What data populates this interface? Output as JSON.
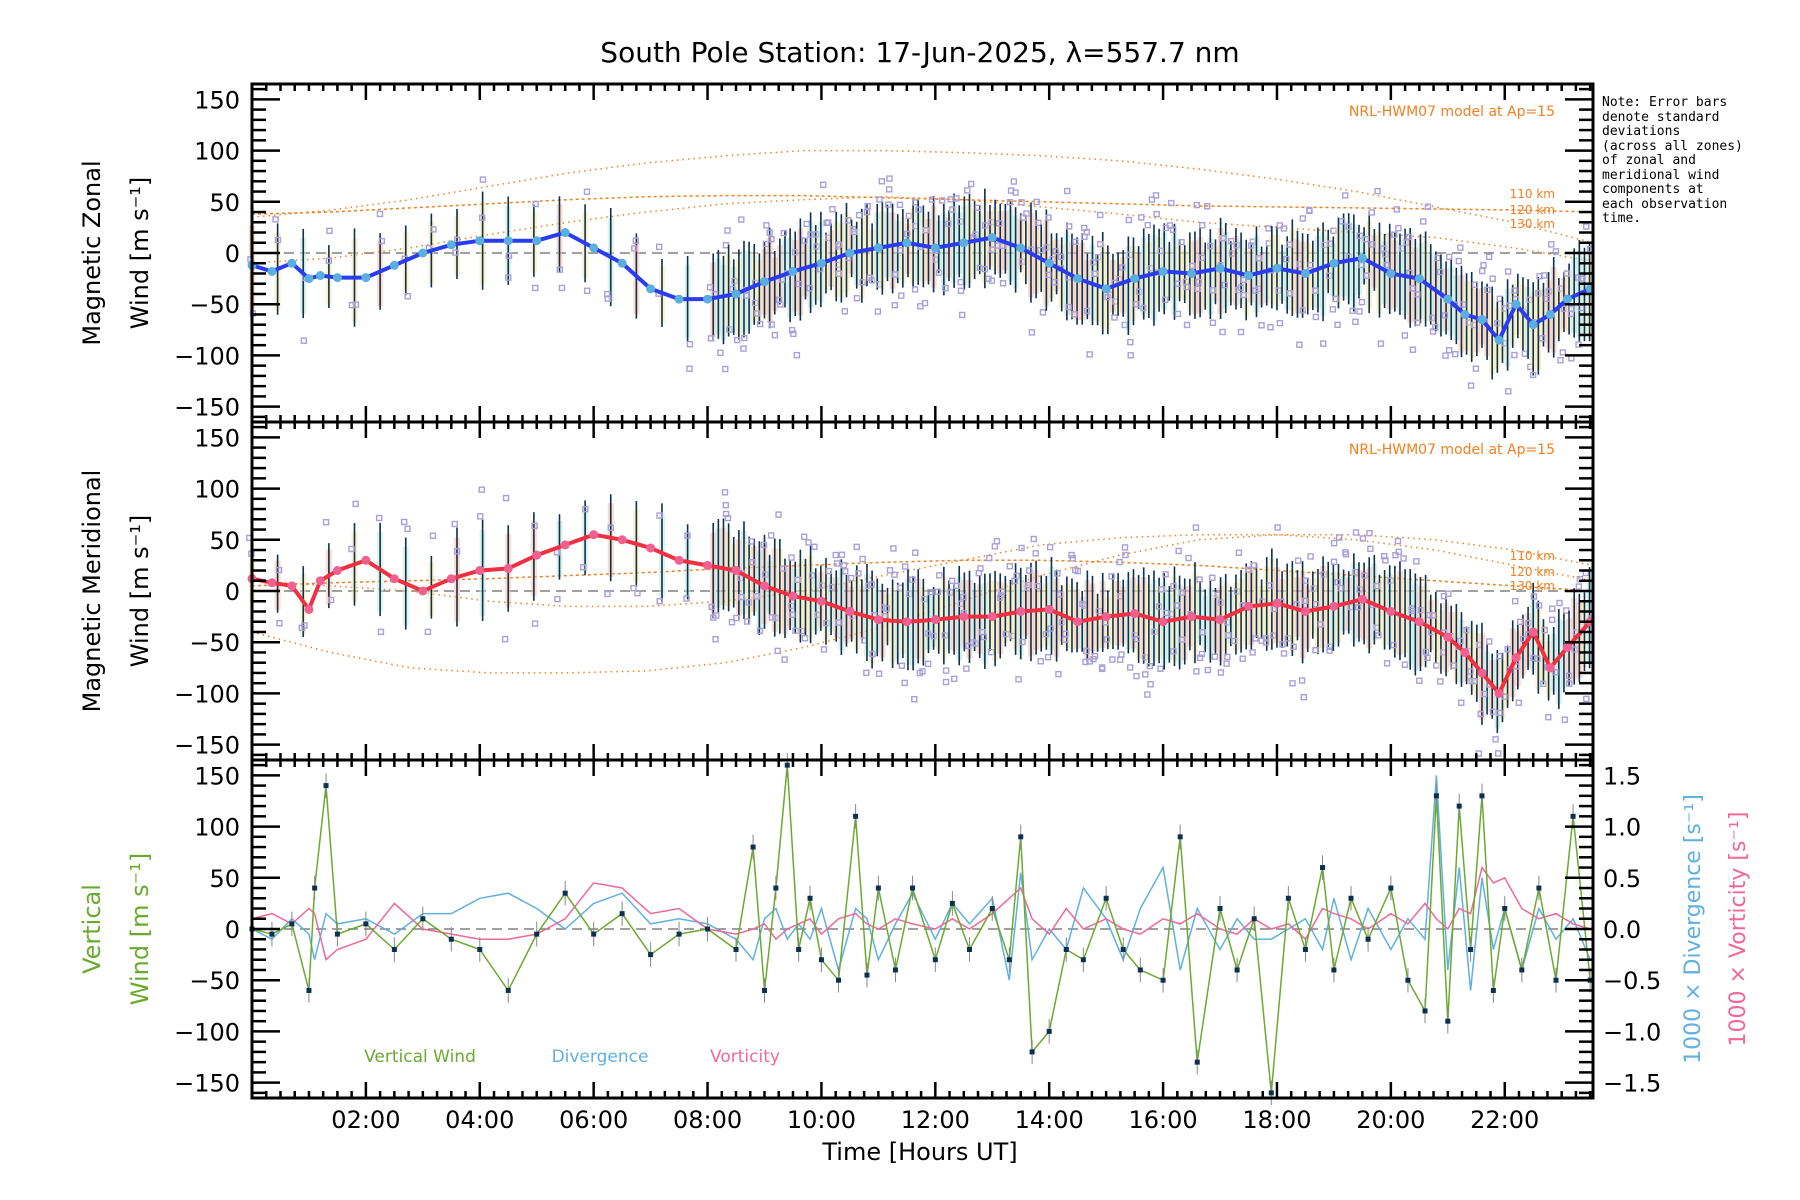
{
  "chart_data": [
    {
      "type": "line",
      "panel": "zonal",
      "title": "South Pole Station: 17-Jun-2025, λ=557.7 nm",
      "ylabel_line1": "Magnetic Zonal",
      "ylabel_line2": "Wind [m s⁻¹]",
      "ylim": [
        -165,
        165
      ],
      "yticks": [
        150,
        100,
        50,
        0,
        -50,
        -100,
        -150
      ],
      "model_label": "NRL-HWM07 model at Ap=15",
      "model_altitudes": [
        "110 km",
        "120 km",
        "130 km"
      ],
      "colors": {
        "mean_line": "#2a3cf0",
        "mean_marker": "#5aaee0",
        "model": "#f08020",
        "outlier": "#a8a0d8",
        "error_bar": "#0c3050"
      },
      "x_hours": [
        0.0,
        0.35,
        0.7,
        1.0,
        1.2,
        1.5,
        2.0,
        2.5,
        3.0,
        3.5,
        4.0,
        4.5,
        5.0,
        5.5,
        6.0,
        6.5,
        7.0,
        7.5,
        8.0,
        8.5,
        9.0,
        9.5,
        10.0,
        10.5,
        11.0,
        11.5,
        12.0,
        12.5,
        13.0,
        13.5,
        14.0,
        14.5,
        15.0,
        15.5,
        16.0,
        16.5,
        17.0,
        17.5,
        18.0,
        18.5,
        19.0,
        19.5,
        20.0,
        20.5,
        21.0,
        21.3,
        21.6,
        21.9,
        22.2,
        22.5,
        22.8,
        23.1,
        23.5
      ],
      "mean_wind": [
        -12,
        -18,
        -10,
        -25,
        -22,
        -24,
        -24,
        -12,
        0,
        8,
        12,
        12,
        12,
        20,
        5,
        -10,
        -35,
        -45,
        -45,
        -40,
        -28,
        -18,
        -10,
        0,
        5,
        10,
        5,
        10,
        15,
        5,
        -10,
        -25,
        -35,
        -25,
        -18,
        -20,
        -15,
        -22,
        -15,
        -20,
        -10,
        -5,
        -20,
        -25,
        -45,
        -60,
        -65,
        -85,
        -50,
        -70,
        -60,
        -45,
        -35
      ],
      "model_110km": [
        35,
        42,
        52,
        65,
        78,
        88,
        95,
        100,
        100,
        98,
        95,
        90,
        82,
        72,
        60,
        45,
        30,
        10
      ],
      "model_120km": [
        38,
        40,
        44,
        48,
        52,
        55,
        56,
        56,
        54,
        52,
        50,
        48,
        46,
        45,
        44,
        43,
        42,
        40
      ],
      "model_130km": [
        -10,
        -5,
        5,
        18,
        30,
        40,
        48,
        52,
        55,
        52,
        45,
        38,
        30,
        25,
        20,
        15,
        5,
        -8
      ]
    },
    {
      "type": "line",
      "panel": "meridional",
      "ylabel_line1": "Magnetic Meridional",
      "ylabel_line2": "Wind [m s⁻¹]",
      "ylim": [
        -165,
        165
      ],
      "yticks": [
        150,
        100,
        50,
        0,
        -50,
        -100,
        -150
      ],
      "model_label": "NRL-HWM07 model at Ap=15",
      "model_altitudes": [
        "110 km",
        "120 km",
        "130 km"
      ],
      "colors": {
        "mean_line": "#f03040",
        "mean_marker": "#f06090",
        "model": "#f08020",
        "outlier": "#a8a0d8",
        "error_bar": "#0c3050"
      },
      "x_hours": [
        0.0,
        0.35,
        0.7,
        1.0,
        1.2,
        1.5,
        2.0,
        2.5,
        3.0,
        3.5,
        4.0,
        4.5,
        5.0,
        5.5,
        6.0,
        6.5,
        7.0,
        7.5,
        8.0,
        8.5,
        9.0,
        9.5,
        10.0,
        10.5,
        11.0,
        11.5,
        12.0,
        12.5,
        13.0,
        13.5,
        14.0,
        14.5,
        15.0,
        15.5,
        16.0,
        16.5,
        17.0,
        17.5,
        18.0,
        18.5,
        19.0,
        19.5,
        20.0,
        20.5,
        21.0,
        21.3,
        21.6,
        21.9,
        22.2,
        22.5,
        22.8,
        23.1,
        23.5
      ],
      "mean_wind": [
        12,
        8,
        5,
        -18,
        10,
        20,
        30,
        12,
        0,
        12,
        20,
        22,
        35,
        45,
        55,
        50,
        42,
        30,
        25,
        20,
        5,
        -5,
        -10,
        -20,
        -28,
        -30,
        -28,
        -25,
        -25,
        -20,
        -18,
        -30,
        -25,
        -22,
        -30,
        -25,
        -28,
        -15,
        -12,
        -20,
        -15,
        -8,
        -20,
        -30,
        -45,
        -60,
        -80,
        -100,
        -65,
        -40,
        -75,
        -55,
        -30
      ],
      "model_110km": [
        -40,
        -60,
        -75,
        -80,
        -80,
        -78,
        -70,
        -55,
        -35,
        -10,
        15,
        35,
        50,
        55,
        55,
        50,
        40,
        25
      ],
      "model_120km": [
        5,
        8,
        10,
        12,
        15,
        18,
        22,
        25,
        28,
        30,
        30,
        28,
        25,
        20,
        15,
        10,
        5,
        0
      ],
      "model_130km": [
        10,
        5,
        0,
        -10,
        -15,
        -15,
        -10,
        0,
        15,
        30,
        45,
        52,
        55,
        55,
        50,
        40,
        25,
        10
      ]
    },
    {
      "type": "line",
      "panel": "vertical",
      "ylabel_line1": "Vertical",
      "ylabel_line2": "Wind [m s⁻¹]",
      "ylim": [
        -165,
        165
      ],
      "yticks": [
        150,
        100,
        50,
        0,
        -50,
        -100,
        -150
      ],
      "y2label_divergence": "1000 × Divergence [s⁻¹]",
      "y2label_vorticity": "1000 × Vorticity [s⁻¹]",
      "y2lim": [
        -1.65,
        1.65
      ],
      "y2ticks": [
        "1.5",
        "1.0",
        "0.5",
        "0.0",
        "-0.5",
        "-1.0",
        "-1.5"
      ],
      "legend": [
        "Vertical Wind",
        "Divergence",
        "Vorticity"
      ],
      "legend_placement": "bottom-left",
      "colors": {
        "vertical": "#6aaa30",
        "divergence": "#60b0e0",
        "vorticity": "#f06898",
        "marker": "#0c3050"
      },
      "x_hours": [
        0.0,
        0.35,
        0.7,
        1.0,
        1.1,
        1.3,
        1.5,
        2.0,
        2.5,
        3.0,
        3.5,
        4.0,
        4.5,
        5.0,
        5.5,
        6.0,
        6.5,
        7.0,
        7.5,
        8.0,
        8.5,
        8.8,
        9.0,
        9.2,
        9.4,
        9.6,
        9.8,
        10.0,
        10.3,
        10.6,
        10.8,
        11.0,
        11.3,
        11.6,
        12.0,
        12.3,
        12.6,
        13.0,
        13.3,
        13.5,
        13.7,
        14.0,
        14.3,
        14.6,
        15.0,
        15.3,
        15.6,
        16.0,
        16.3,
        16.6,
        17.0,
        17.3,
        17.6,
        17.9,
        18.2,
        18.5,
        18.8,
        19.0,
        19.3,
        19.6,
        20.0,
        20.3,
        20.6,
        20.8,
        21.0,
        21.2,
        21.4,
        21.6,
        21.8,
        22.0,
        22.3,
        22.6,
        22.9,
        23.2,
        23.5
      ],
      "vertical_wind": [
        0,
        -5,
        5,
        -60,
        40,
        140,
        -5,
        5,
        -20,
        10,
        -10,
        -20,
        -60,
        -5,
        35,
        -5,
        15,
        -25,
        -5,
        0,
        -20,
        80,
        -60,
        40,
        160,
        -20,
        30,
        -30,
        -50,
        110,
        -45,
        40,
        -40,
        40,
        -30,
        25,
        -20,
        20,
        -30,
        90,
        -120,
        -100,
        -20,
        -30,
        30,
        -20,
        -40,
        -50,
        90,
        -130,
        20,
        -40,
        10,
        -160,
        30,
        -20,
        60,
        -40,
        30,
        -10,
        40,
        -50,
        -80,
        130,
        -90,
        120,
        -20,
        130,
        -60,
        20,
        -40,
        40,
        -50,
        110,
        -50
      ],
      "divergence": [
        0,
        -0.1,
        0.1,
        -0.05,
        -0.3,
        0.15,
        0.05,
        0.1,
        -0.05,
        0.15,
        0.15,
        0.3,
        0.35,
        0.2,
        0.0,
        0.25,
        0.35,
        0.05,
        0.1,
        0.05,
        -0.1,
        -0.3,
        0.1,
        0.2,
        -0.1,
        0.05,
        -0.1,
        0.2,
        -0.4,
        0.2,
        0.1,
        -0.3,
        0.05,
        0.35,
        -0.1,
        0.25,
        0.05,
        0.3,
        -0.5,
        0.55,
        -0.3,
        0.0,
        -0.2,
        0.4,
        0.1,
        -0.3,
        0.2,
        0.6,
        -0.4,
        0.2,
        -0.2,
        0.1,
        -0.1,
        -0.1,
        0.0,
        0.1,
        -0.2,
        0.3,
        -0.3,
        0.2,
        -0.2,
        0.1,
        -0.1,
        1.5,
        -0.4,
        0.6,
        -0.6,
        0.5,
        -0.2,
        0.2,
        -0.4,
        0.2,
        -0.1,
        0.1,
        -0.3
      ],
      "vorticity": [
        0.1,
        0.15,
        0.05,
        0.2,
        0.15,
        -0.3,
        -0.2,
        -0.1,
        0.25,
        0.0,
        -0.05,
        -0.1,
        -0.1,
        -0.05,
        0.1,
        0.45,
        0.4,
        0.15,
        0.2,
        0.0,
        -0.05,
        0.0,
        0.05,
        -0.1,
        0.0,
        0.05,
        0.1,
        -0.05,
        0.1,
        0.15,
        0.05,
        0.0,
        0.1,
        0.05,
        0.0,
        0.1,
        0.0,
        0.15,
        0.3,
        0.4,
        0.1,
        -0.05,
        0.2,
        0.0,
        0.1,
        0.0,
        -0.05,
        0.1,
        0.05,
        0.15,
        0.0,
        -0.05,
        0.1,
        0.0,
        0.05,
        -0.1,
        0.2,
        0.15,
        0.1,
        0.0,
        0.15,
        0.05,
        0.25,
        0.1,
        0.0,
        0.2,
        0.15,
        0.6,
        0.45,
        0.5,
        0.2,
        0.1,
        0.15,
        0.05,
        0.0
      ]
    }
  ],
  "xaxis": {
    "label": "Time [Hours UT]",
    "tick_labels": [
      "02:00",
      "04:00",
      "06:00",
      "08:00",
      "10:00",
      "12:00",
      "14:00",
      "16:00",
      "18:00",
      "20:00",
      "22:00"
    ],
    "tick_hours": [
      2,
      4,
      6,
      8,
      10,
      12,
      14,
      16,
      18,
      20,
      22
    ],
    "xlim": [
      0.0,
      23.55
    ]
  },
  "note": "Note: Error bars\ndenote standard\ndeviations\n(across all zones)\nof zonal and\nmeridional wind\ncomponents at\neach observation\ntime."
}
